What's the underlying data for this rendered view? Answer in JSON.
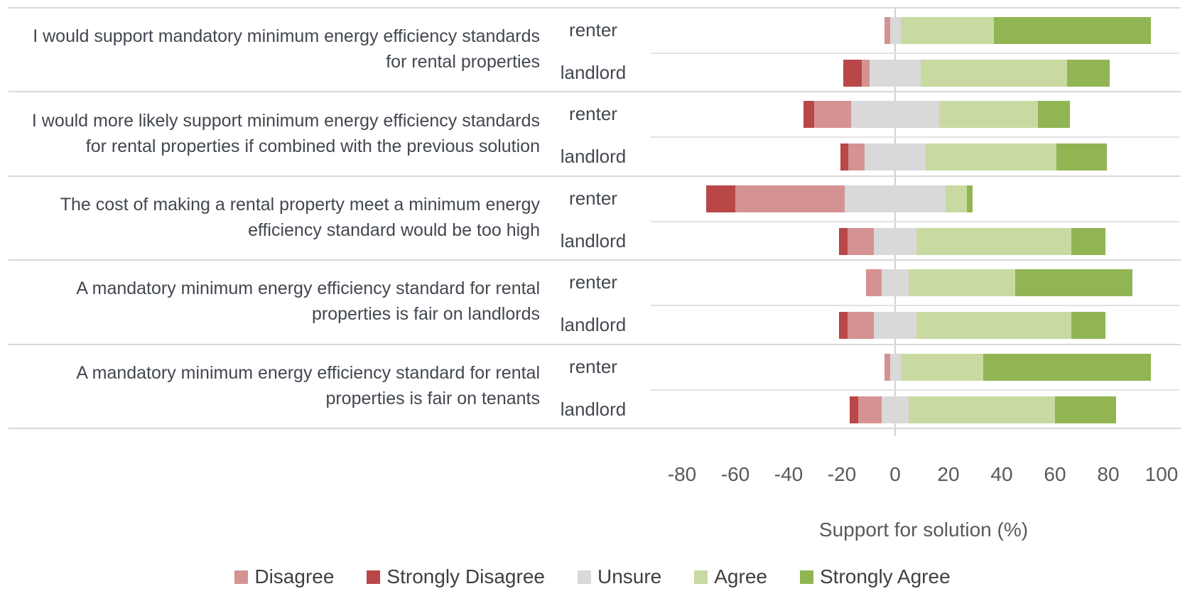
{
  "chart_data": {
    "type": "bar",
    "subtype": "diverging-stacked-likert",
    "title": "",
    "xlabel": "Support for solution (%)",
    "x_ticks": [
      -80,
      -60,
      -40,
      -20,
      0,
      20,
      40,
      60,
      80,
      100
    ],
    "xlim": [
      -80,
      100
    ],
    "grid": "zero-line-only",
    "legend_position": "bottom",
    "stack_note": "bars ordered left-to-right: Strongly Disagree, Disagree, Unsure (centered on 0), Agree, Strongly Agree; values are percentages",
    "legend": [
      {
        "key": "disagree",
        "label": "Disagree",
        "color": "#d59292"
      },
      {
        "key": "strongly_disagree",
        "label": "Strongly Disagree",
        "color": "#b94747"
      },
      {
        "key": "unsure",
        "label": "Unsure",
        "color": "#d9d9d9"
      },
      {
        "key": "agree",
        "label": "Agree",
        "color": "#c9d9a2"
      },
      {
        "key": "strongly_agree",
        "label": "Strongly Agree",
        "color": "#92b554"
      }
    ],
    "groups": [
      {
        "question": "I would support mandatory minimum energy efficiency standards for rental properties",
        "rows": [
          {
            "respondent": "renter",
            "strongly_disagree": 0,
            "disagree": 2,
            "unsure": 4,
            "agree": 35,
            "strongly_agree": 59
          },
          {
            "respondent": "landlord",
            "strongly_disagree": 7,
            "disagree": 3,
            "unsure": 19,
            "agree": 55,
            "strongly_agree": 16
          }
        ]
      },
      {
        "question": "I would more likely support minimum energy efficiency standards for rental properties if combined with the previous solution",
        "rows": [
          {
            "respondent": "renter",
            "strongly_disagree": 4,
            "disagree": 14,
            "unsure": 33,
            "agree": 37,
            "strongly_agree": 12
          },
          {
            "respondent": "landlord",
            "strongly_disagree": 3,
            "disagree": 6,
            "unsure": 23,
            "agree": 49,
            "strongly_agree": 19
          }
        ]
      },
      {
        "question": "The cost of making a rental property meet a minimum energy efficiency standard would be too high",
        "rows": [
          {
            "respondent": "renter",
            "strongly_disagree": 11,
            "disagree": 41,
            "unsure": 38,
            "agree": 8,
            "strongly_agree": 2
          },
          {
            "respondent": "landlord",
            "strongly_disagree": 3,
            "disagree": 10,
            "unsure": 16,
            "agree": 58,
            "strongly_agree": 13
          }
        ]
      },
      {
        "question": "A mandatory minimum energy efficiency standard for rental properties is fair on landlords",
        "rows": [
          {
            "respondent": "renter",
            "strongly_disagree": 0,
            "disagree": 6,
            "unsure": 10,
            "agree": 40,
            "strongly_agree": 44
          },
          {
            "respondent": "landlord",
            "strongly_disagree": 3,
            "disagree": 10,
            "unsure": 16,
            "agree": 58,
            "strongly_agree": 13
          }
        ]
      },
      {
        "question": "A mandatory minimum energy efficiency standard for rental properties is fair on tenants",
        "rows": [
          {
            "respondent": "renter",
            "strongly_disagree": 0,
            "disagree": 2,
            "unsure": 4,
            "agree": 31,
            "strongly_agree": 63
          },
          {
            "respondent": "landlord",
            "strongly_disagree": 3,
            "disagree": 9,
            "unsure": 10,
            "agree": 55,
            "strongly_agree": 23
          }
        ]
      }
    ]
  }
}
